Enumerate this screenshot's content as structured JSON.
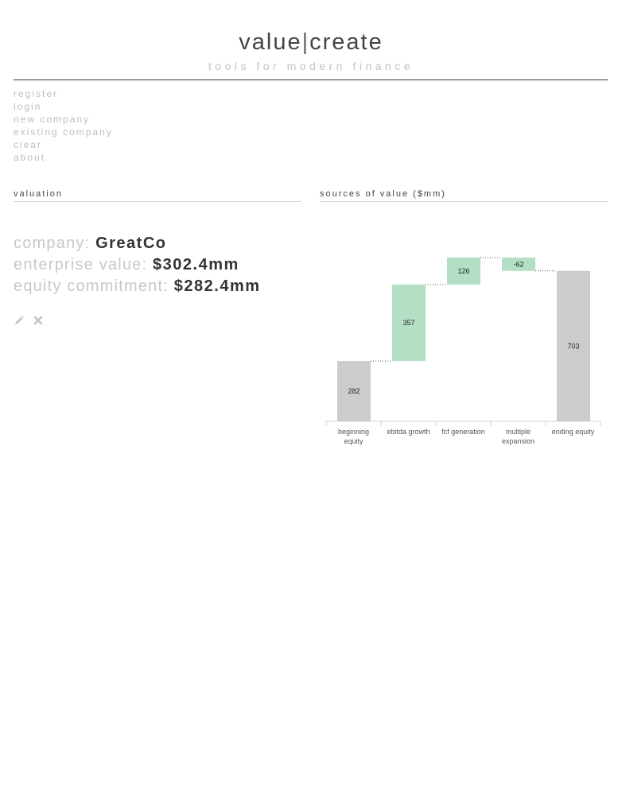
{
  "header": {
    "title_left": "value",
    "title_sep": "|",
    "title_right": "create",
    "tagline": "tools for modern finance"
  },
  "nav": {
    "items": [
      "register",
      "login",
      "new company",
      "existing company",
      "clear",
      "about"
    ]
  },
  "sections": {
    "valuation_title": "valuation",
    "sources_title": "sources of value ($mm)"
  },
  "summary": {
    "company_label": "company:",
    "company_value": "GreatCo",
    "ev_label": "enterprise value:",
    "ev_value": "$302.4mm",
    "equity_label": "equity commitment:",
    "equity_value": "$282.4mm"
  },
  "actions": {
    "edit_icon": "pencil-icon",
    "delete_icon": "close-icon"
  },
  "colors": {
    "total_bar": "#cccccc",
    "delta_bar": "#b3e0c5",
    "axis": "#c9d4dd",
    "connector": "#555555"
  },
  "chart_data": {
    "type": "bar",
    "title": "sources of value ($mm)",
    "categories": [
      [
        "beginning",
        "equity"
      ],
      [
        "ebitda growth"
      ],
      [
        "fcf generation"
      ],
      [
        "multiple",
        "expansion"
      ],
      [
        "ending equity"
      ]
    ],
    "values": [
      282,
      357,
      126,
      -62,
      703
    ],
    "value_labels": [
      "282",
      "357",
      "126",
      "-62",
      "703"
    ],
    "kind": [
      "total",
      "delta",
      "delta",
      "delta",
      "total"
    ],
    "ylim": [
      0,
      765
    ]
  }
}
